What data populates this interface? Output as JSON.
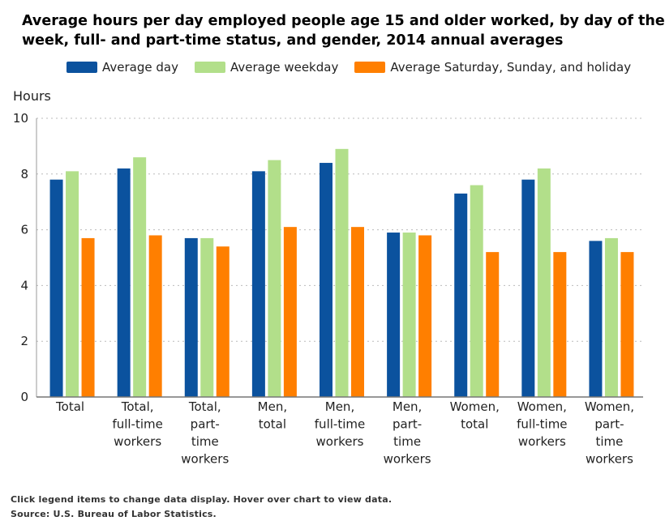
{
  "chart_data": {
    "type": "bar",
    "title": "Average hours per day employed people age 15 and older worked, by day of the week, full- and part-time status, and gender, 2014 annual averages",
    "ylabel": "Hours",
    "xlabel": "",
    "ylim": [
      0,
      10
    ],
    "yticks": [
      0,
      2,
      4,
      6,
      8,
      10
    ],
    "grid": true,
    "legend_position": "top",
    "categories": [
      [
        "Total"
      ],
      [
        "Total,",
        "full-time",
        "workers"
      ],
      [
        "Total,",
        "part-",
        "time",
        "workers"
      ],
      [
        "Men,",
        "total"
      ],
      [
        "Men,",
        "full-time",
        "workers"
      ],
      [
        "Men,",
        "part-",
        "time",
        "workers"
      ],
      [
        "Women,",
        "total"
      ],
      [
        "Women,",
        "full-time",
        "workers"
      ],
      [
        "Women,",
        "part-",
        "time",
        "workers"
      ]
    ],
    "series": [
      {
        "name": "Average day",
        "color": "#0b529e",
        "values": [
          7.8,
          8.2,
          5.7,
          8.1,
          8.4,
          5.9,
          7.3,
          7.8,
          5.6
        ]
      },
      {
        "name": "Average weekday",
        "color": "#b2df8a",
        "values": [
          8.1,
          8.6,
          5.7,
          8.5,
          8.9,
          5.9,
          7.6,
          8.2,
          5.7
        ]
      },
      {
        "name": "Average Saturday, Sunday, and holiday",
        "color": "#ff7f00",
        "values": [
          5.7,
          5.8,
          5.4,
          6.1,
          6.1,
          5.8,
          5.2,
          5.2,
          5.2
        ]
      }
    ]
  },
  "notes": {
    "instructions": "Click legend items to change data display. Hover over chart to view data.",
    "source": "Source: U.S. Bureau of Labor Statistics."
  }
}
